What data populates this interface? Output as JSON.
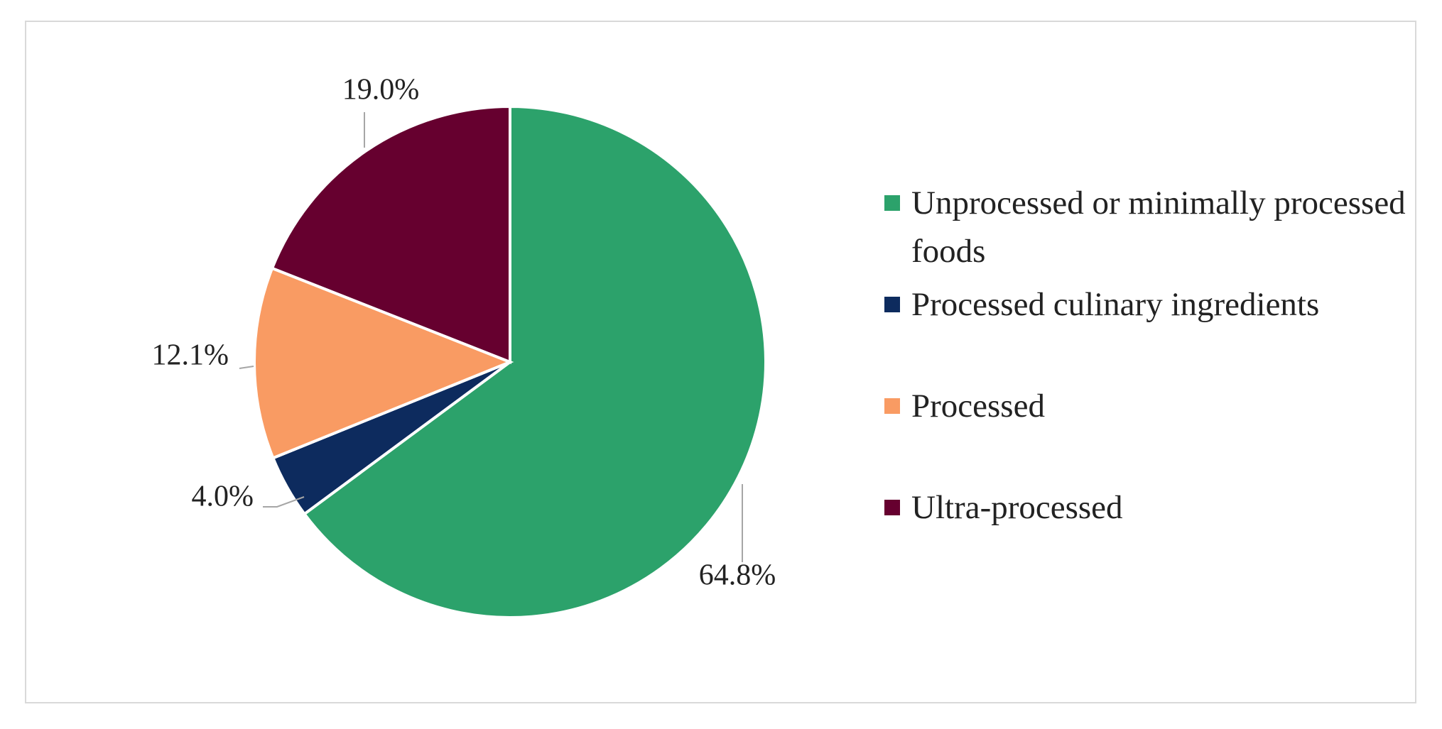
{
  "chart_data": {
    "type": "pie",
    "categories": [
      "Unprocessed or minimally processed foods",
      "Processed culinary ingredients",
      "Processed",
      "Ultra-processed"
    ],
    "values": [
      64.8,
      4.0,
      12.1,
      19.0
    ],
    "value_labels": [
      "64.8%",
      "4.0%",
      "12.1%",
      "19.0%"
    ],
    "colors": [
      "#2ca26b",
      "#0d2b5e",
      "#f99b63",
      "#66002f"
    ],
    "legend": "right"
  }
}
